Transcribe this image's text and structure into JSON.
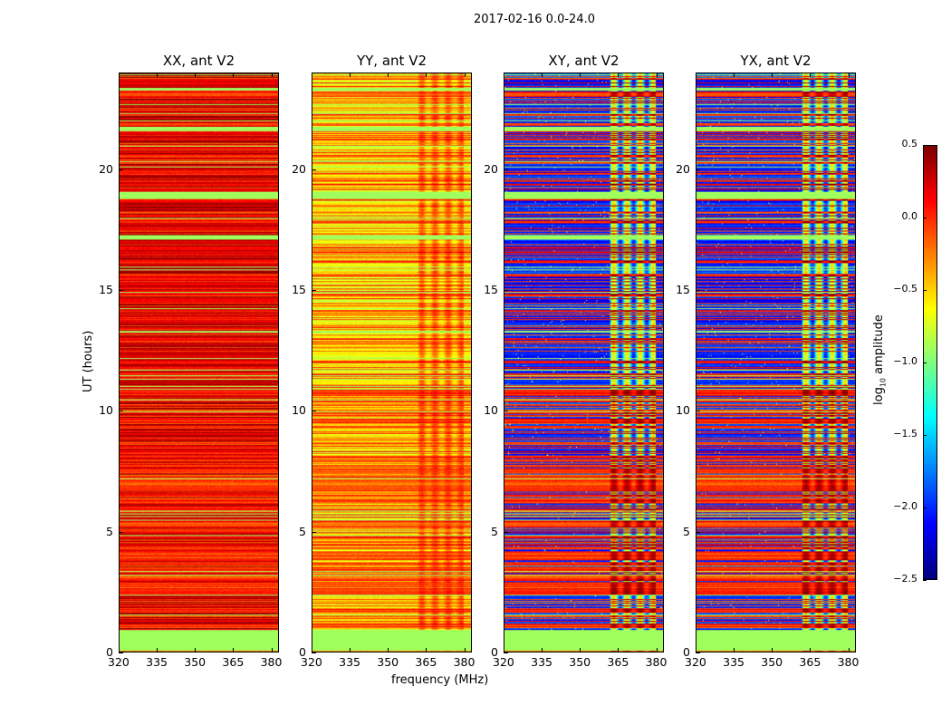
{
  "chart_data": {
    "type": "heatmap",
    "suptitle": "2017-02-16 0.0-24.0",
    "xlabel": "frequency (MHz)",
    "ylabel": "UT (hours)",
    "xlim": [
      320,
      383
    ],
    "ylim": [
      0,
      24
    ],
    "xticks": [
      "320",
      "335",
      "350",
      "365",
      "380"
    ],
    "xtick_values": [
      320,
      335,
      350,
      365,
      380
    ],
    "yticks": [
      "0",
      "5",
      "10",
      "15",
      "20"
    ],
    "ytick_values": [
      0,
      5,
      10,
      15,
      20
    ],
    "colormap": "jet",
    "colorbar": {
      "label_prefix": "log",
      "label_sub": "10",
      "label_suffix": " amplitude",
      "range": [
        -2.5,
        0.5
      ],
      "ticks": [
        "0.5",
        "0.0",
        "−0.5",
        "−1.0",
        "−1.5",
        "−2.0",
        "−2.5"
      ],
      "tick_values": [
        0.5,
        0.0,
        -0.5,
        -1.0,
        -1.5,
        -2.0,
        -2.5
      ]
    },
    "flagged_value": -0.9,
    "flagged_hours": [
      [
        0.05,
        0.9
      ],
      [
        17.1,
        17.3
      ],
      [
        18.8,
        19.1
      ],
      [
        21.6,
        21.8
      ],
      [
        23.3,
        23.4
      ]
    ],
    "rfi_band_mhz": [
      362,
      380
    ],
    "panels": [
      {
        "title": "XX, ant V2",
        "typical_log_amplitude": 0.3,
        "low_rows_log_amplitude": 0.0,
        "rfi_excess": 0.0
      },
      {
        "title": "YY, ant V2",
        "typical_log_amplitude": -0.6,
        "low_rows_log_amplitude": -0.1,
        "rfi_excess": 0.45
      },
      {
        "title": "XY, ant V2",
        "typical_log_amplitude": -2.0,
        "low_rows_log_amplitude": 0.0,
        "rfi_excess": 1.5
      },
      {
        "title": "YX, ant V2",
        "typical_log_amplitude": -2.0,
        "low_rows_log_amplitude": 0.0,
        "rfi_excess": 1.5
      }
    ]
  }
}
